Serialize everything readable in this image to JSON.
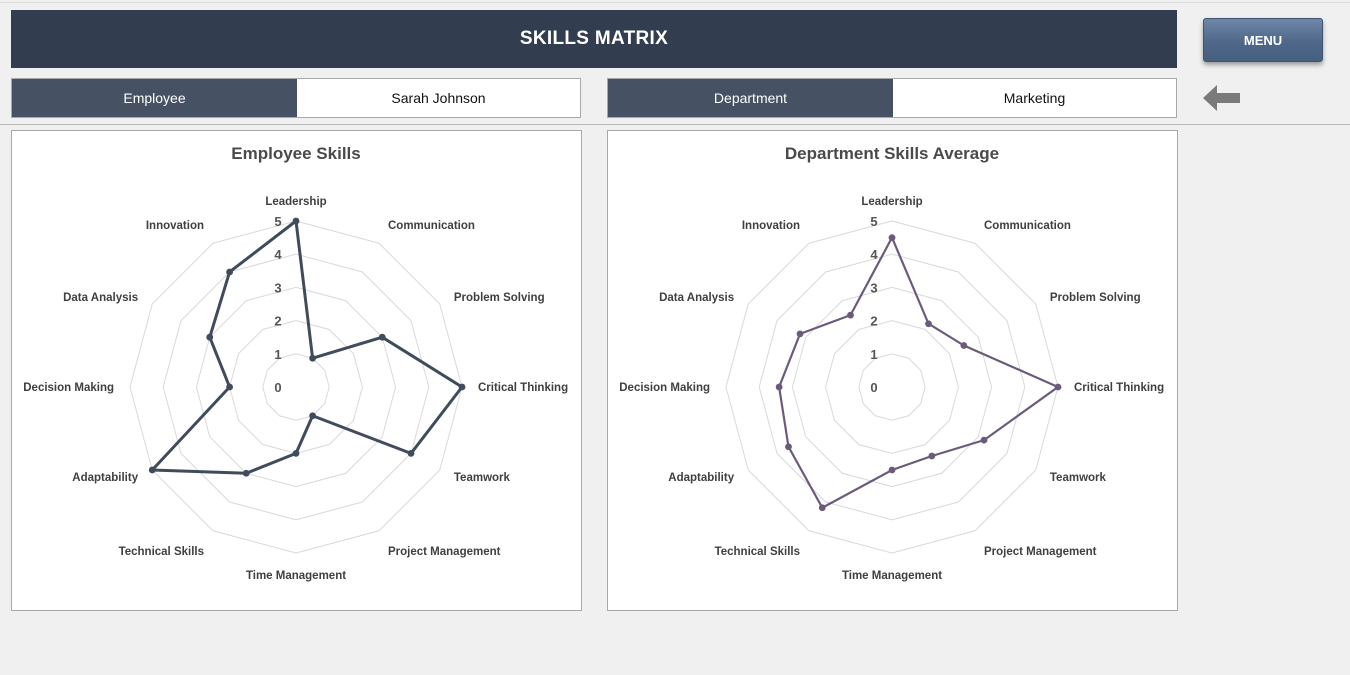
{
  "header": {
    "title": "SKILLS MATRIX",
    "menu_label": "MENU"
  },
  "selectors": {
    "employee": {
      "label": "Employee",
      "value": "Sarah Johnson"
    },
    "department": {
      "label": "Department",
      "value": "Marketing"
    }
  },
  "icons": {
    "back": "arrow-left-icon"
  },
  "colors": {
    "header_bg": "#323e4f",
    "label_bg": "#465264",
    "employee_series": "#404b5c",
    "department_series": "#6c5a7c"
  },
  "chart_data": [
    {
      "type": "radar",
      "title": "Employee Skills",
      "categories": [
        "Leadership",
        "Communication",
        "Problem Solving",
        "Critical Thinking",
        "Teamwork",
        "Project Management",
        "Time Management",
        "Technical Skills",
        "Adaptability",
        "Decision Making",
        "Data Analysis",
        "Innovation"
      ],
      "values": [
        5,
        1,
        3,
        5,
        4,
        1,
        2,
        3,
        5,
        2,
        3,
        4
      ],
      "ticks": [
        "0",
        "1",
        "2",
        "3",
        "4",
        "5"
      ],
      "rmin": 0,
      "rmax": 5,
      "color": "#404b5c"
    },
    {
      "type": "radar",
      "title": "Department Skills Average",
      "categories": [
        "Leadership",
        "Communication",
        "Problem Solving",
        "Critical Thinking",
        "Teamwork",
        "Project Management",
        "Time Management",
        "Technical Skills",
        "Adaptability",
        "Decision Making",
        "Data Analysis",
        "Innovation"
      ],
      "values": [
        4.5,
        2.2,
        2.5,
        5,
        3.2,
        2.4,
        2.5,
        4.2,
        3.6,
        3.4,
        3.2,
        2.5
      ],
      "ticks": [
        "0",
        "1",
        "2",
        "3",
        "4",
        "5"
      ],
      "rmin": 0,
      "rmax": 5,
      "color": "#6c5a7c"
    }
  ]
}
